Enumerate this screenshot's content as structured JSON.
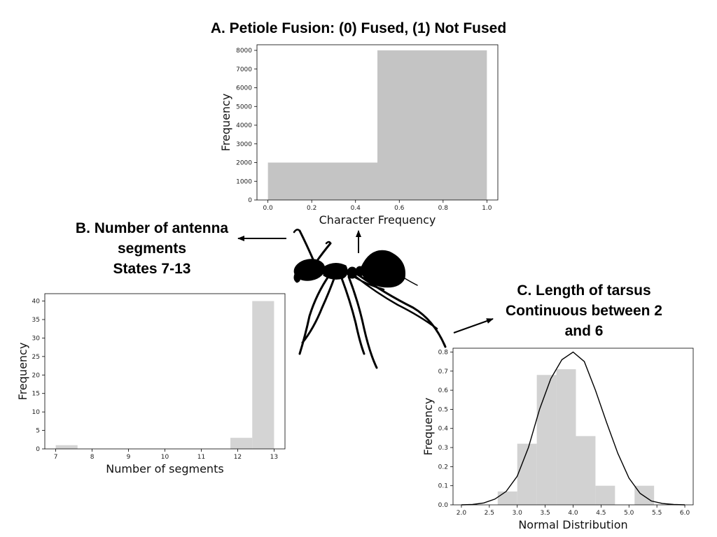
{
  "titles": {
    "a": "A. Petiole Fusion: (0) Fused, (1) Not Fused",
    "b": [
      "B. Number of antenna",
      "segments",
      "States 7-13"
    ],
    "c": [
      "C. Length of tarsus",
      "Continuous between 2",
      "and 6"
    ]
  },
  "colors": {
    "bar_a": "#c4c4c4",
    "bar_b": "#d4d4d4",
    "bar_c": "#d2d2d2",
    "curve": "#000000",
    "frame": "#000000"
  },
  "icons": {
    "ant": "ant-silhouette-icon"
  },
  "chart_data": [
    {
      "type": "bar",
      "title": "A. Petiole Fusion: (0) Fused, (1) Not Fused",
      "xlabel": "Character Frequency",
      "ylabel": "Frequency",
      "bins": [
        [
          0.0,
          0.5
        ],
        [
          0.5,
          1.0
        ]
      ],
      "values": [
        2000,
        8000
      ],
      "xlim": [
        -0.05,
        1.05
      ],
      "ylim": [
        0,
        8300
      ],
      "xticks": [
        0.0,
        0.2,
        0.4,
        0.6,
        0.8,
        1.0
      ],
      "xtick_labels": [
        "0.0",
        "0.2",
        "0.4",
        "0.6",
        "0.8",
        "1.0"
      ],
      "yticks": [
        0,
        1000,
        2000,
        3000,
        4000,
        5000,
        6000,
        7000,
        8000
      ],
      "ytick_labels": [
        "0",
        "1000",
        "2000",
        "3000",
        "4000",
        "5000",
        "6000",
        "7000",
        "8000"
      ],
      "grid": false
    },
    {
      "type": "bar",
      "title": "B. Number of antenna segments States 7-13",
      "xlabel": "Number of segments",
      "ylabel": "Frequency",
      "bins": [
        [
          7.0,
          7.6
        ],
        [
          7.6,
          8.2
        ],
        [
          8.2,
          8.8
        ],
        [
          8.8,
          9.4
        ],
        [
          9.4,
          10.0
        ],
        [
          10.0,
          10.6
        ],
        [
          10.6,
          11.2
        ],
        [
          11.2,
          11.8
        ],
        [
          11.8,
          12.4
        ],
        [
          12.4,
          13.0
        ]
      ],
      "values": [
        1,
        0,
        0,
        0,
        0,
        0,
        0,
        0,
        3,
        40
      ],
      "xlim": [
        6.7,
        13.3
      ],
      "ylim": [
        0,
        42
      ],
      "xticks": [
        7,
        8,
        9,
        10,
        11,
        12,
        13
      ],
      "xtick_labels": [
        "7",
        "8",
        "9",
        "10",
        "11",
        "12",
        "13"
      ],
      "yticks": [
        0,
        5,
        10,
        15,
        20,
        25,
        30,
        35,
        40
      ],
      "ytick_labels": [
        "0",
        "5",
        "10",
        "15",
        "20",
        "25",
        "30",
        "35",
        "40"
      ],
      "grid": false
    },
    {
      "type": "bar",
      "title": "C. Length of tarsus Continuous between 2 and 6",
      "xlabel": "Normal Distribution",
      "ylabel": "Frequency",
      "bins": [
        [
          2.65,
          3.0
        ],
        [
          3.0,
          3.35
        ],
        [
          3.35,
          3.7
        ],
        [
          3.7,
          4.05
        ],
        [
          4.05,
          4.4
        ],
        [
          4.4,
          4.75
        ],
        [
          4.75,
          5.1
        ]
      ],
      "values": [
        0.07,
        0.32,
        0.68,
        0.71,
        0.36,
        0.1,
        0.0
      ],
      "bin_values_extra": [
        [
          5.1,
          5.45,
          0.1
        ]
      ],
      "density_curve": {
        "x": [
          2.0,
          2.2,
          2.4,
          2.6,
          2.8,
          3.0,
          3.2,
          3.4,
          3.6,
          3.8,
          4.0,
          4.2,
          4.4,
          4.6,
          4.8,
          5.0,
          5.2,
          5.4,
          5.6,
          5.8,
          6.0
        ],
        "y": [
          0.0,
          0.002,
          0.01,
          0.03,
          0.07,
          0.15,
          0.3,
          0.5,
          0.66,
          0.76,
          0.8,
          0.75,
          0.6,
          0.43,
          0.27,
          0.14,
          0.06,
          0.02,
          0.007,
          0.002,
          0.0
        ]
      },
      "xlim": [
        1.85,
        6.15
      ],
      "ylim": [
        0,
        0.82
      ],
      "xticks": [
        2.0,
        2.5,
        3.0,
        3.5,
        4.0,
        4.5,
        5.0,
        5.5,
        6.0
      ],
      "xtick_labels": [
        "2.0",
        "2.5",
        "3.0",
        "3.5",
        "4.0",
        "4.5",
        "5.0",
        "5.5",
        "6.0"
      ],
      "yticks": [
        0.0,
        0.1,
        0.2,
        0.3,
        0.4,
        0.5,
        0.6,
        0.7,
        0.8
      ],
      "ytick_labels": [
        "0.0",
        "0.1",
        "0.2",
        "0.3",
        "0.4",
        "0.5",
        "0.6",
        "0.7",
        "0.8"
      ],
      "grid": false
    }
  ]
}
